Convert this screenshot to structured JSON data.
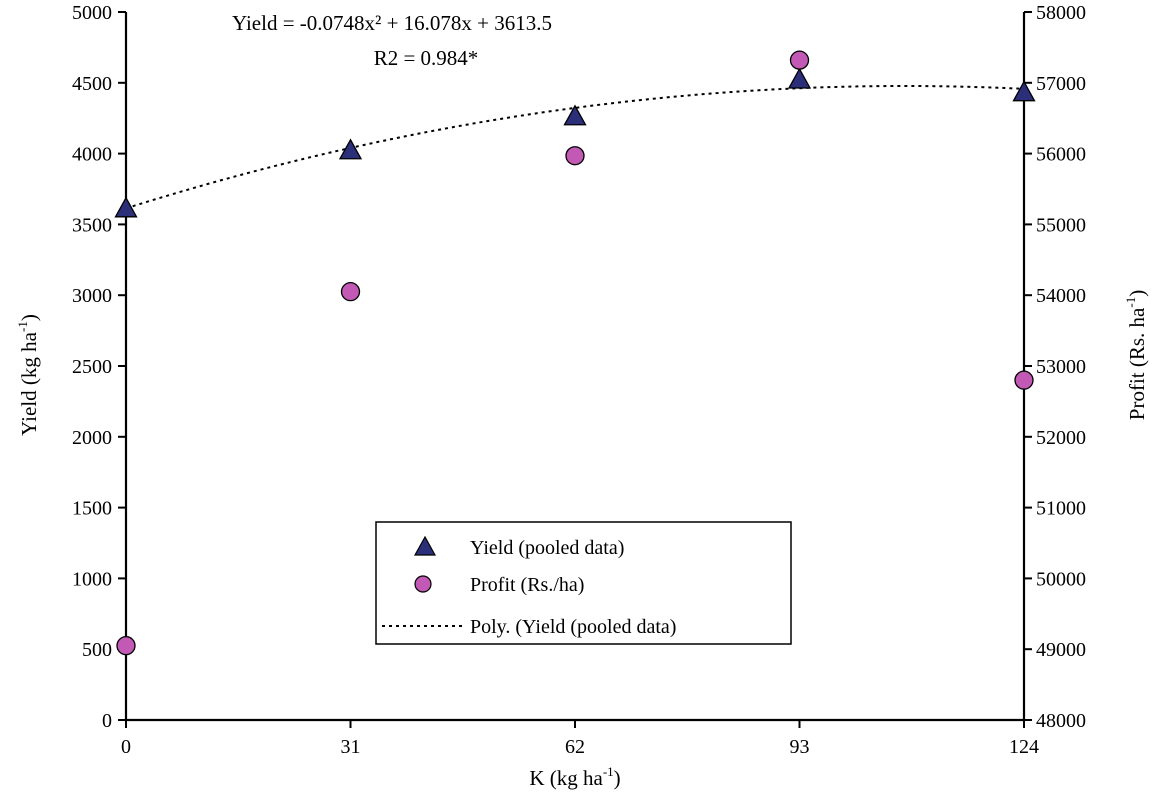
{
  "chart_data": {
    "type": "scatter",
    "x": [
      0,
      31,
      62,
      93,
      124
    ],
    "x_ticks": [
      "0",
      "31",
      "62",
      "93",
      "124"
    ],
    "xlim": [
      0,
      124
    ],
    "xlabel": {
      "main": "K (kg ha",
      "sup": "-1",
      "close": ")"
    },
    "y_left": {
      "label": {
        "main": "Yield (kg ha",
        "sup": "-1",
        "close": ")"
      },
      "lim": [
        0,
        5000
      ],
      "ticks": [
        "0",
        "500",
        "1000",
        "1500",
        "2000",
        "2500",
        "3000",
        "3500",
        "4000",
        "4500",
        "5000"
      ]
    },
    "y_right": {
      "label": {
        "main": "Profit (Rs. ha",
        "sup": "-1",
        "close": ")"
      },
      "lim": [
        48000,
        58000
      ],
      "ticks": [
        "48000",
        "49000",
        "50000",
        "51000",
        "52000",
        "53000",
        "54000",
        "55000",
        "56000",
        "57000",
        "58000"
      ]
    },
    "series": [
      {
        "name": "Yield (pooled data)",
        "axis": "left",
        "marker": "triangle",
        "color": "#2b2f7a",
        "values": [
          3610,
          4020,
          4260,
          4520,
          4430
        ]
      },
      {
        "name": "Profit (Rs./ha)",
        "axis": "right",
        "marker": "circle",
        "color": "#c259b5",
        "values": [
          49050,
          54050,
          55970,
          57320,
          52800
        ]
      }
    ],
    "trendline": {
      "name": "Poly. (Yield (pooled data)",
      "axis": "left",
      "style": "dotted",
      "coefficients": {
        "a": -0.0748,
        "b": 16.078,
        "c": 3613.5
      }
    },
    "equation": "Yield = -0.0748x² + 16.078x + 3613.5",
    "r2": "R2 = 0.984*",
    "legend_position": "bottom-center"
  }
}
